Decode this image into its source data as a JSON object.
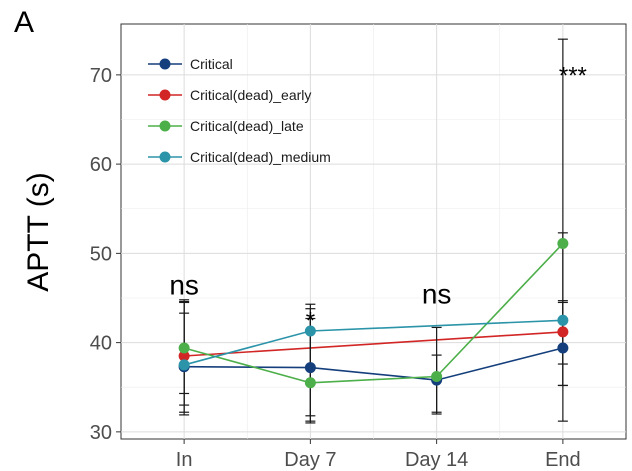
{
  "panel_label": "A",
  "chart_data": {
    "type": "line",
    "title": "",
    "xlabel": "",
    "ylabel": "APTT (s)",
    "categories": [
      "In",
      "Day 7",
      "Day 14",
      "End"
    ],
    "ylim": [
      29.2,
      75.7
    ],
    "yticks": [
      30,
      40,
      50,
      60,
      70
    ],
    "grid": true,
    "legend_position": "top-left",
    "series": [
      {
        "name": "Critical",
        "color": "#153f7c",
        "values": [
          37.3,
          37.2,
          35.8,
          39.4
        ],
        "err_low": [
          33.0,
          31.8,
          32.2,
          35.2
        ],
        "err_high": [
          43.3,
          42.7,
          38.6,
          44.5
        ]
      },
      {
        "name": "Critical(dead)_early",
        "color": "#d12625",
        "values": [
          38.5,
          null,
          null,
          41.2
        ],
        "err_low": [
          32.2,
          null,
          null,
          37.6
        ],
        "err_high": [
          44.8,
          null,
          null,
          44.7
        ]
      },
      {
        "name": "Critical(dead)_late",
        "color": "#4daf4a",
        "values": [
          39.4,
          35.5,
          36.2,
          51.1
        ],
        "err_low": [
          34.3,
          31.2,
          32.0,
          31.2
        ],
        "err_high": [
          44.5,
          43.8,
          41.7,
          74.0
        ]
      },
      {
        "name": "Critical(dead)_medium",
        "color": "#2b94a9",
        "values": [
          37.5,
          41.3,
          null,
          42.5
        ],
        "err_low": [
          31.9,
          31.0,
          null,
          35.2
        ],
        "err_high": [
          44.6,
          44.3,
          null,
          52.3
        ]
      }
    ],
    "annotations": [
      {
        "category": "In",
        "text": "ns",
        "y": 46.5,
        "size": 28
      },
      {
        "category": "Day 7",
        "text": "*",
        "y": 42.5,
        "size": 24
      },
      {
        "category": "Day 14",
        "text": "ns",
        "y": 45.5,
        "size": 28
      },
      {
        "category": "End",
        "text": "***",
        "y": 70.0,
        "size": 24
      }
    ]
  }
}
